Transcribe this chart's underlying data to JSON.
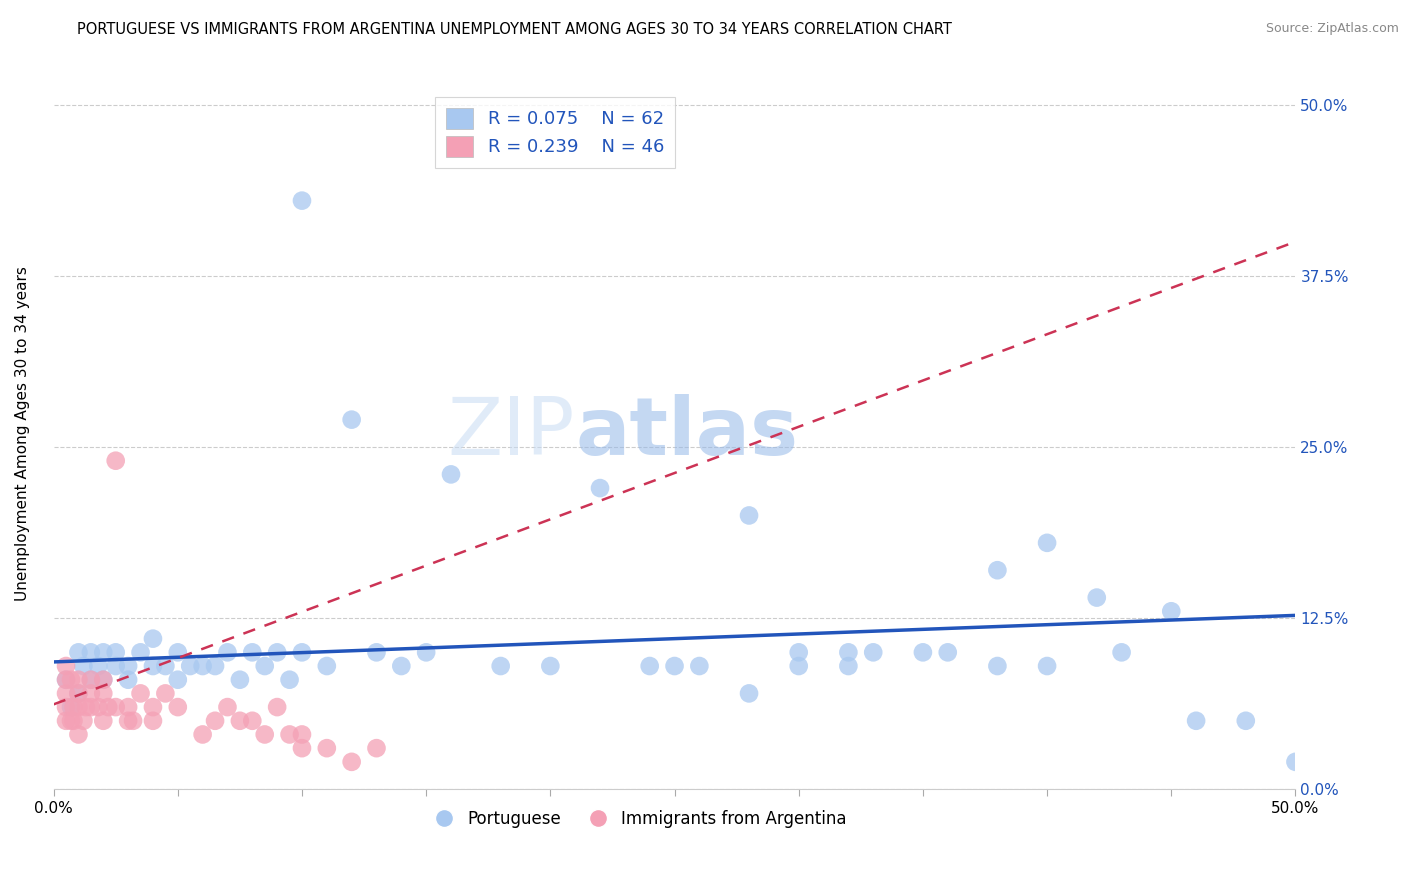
{
  "title": "PORTUGUESE VS IMMIGRANTS FROM ARGENTINA UNEMPLOYMENT AMONG AGES 30 TO 34 YEARS CORRELATION CHART",
  "source": "Source: ZipAtlas.com",
  "ylabel": "Unemployment Among Ages 30 to 34 years",
  "xlim": [
    0.0,
    0.5
  ],
  "ylim": [
    0.0,
    0.52
  ],
  "ytick_labels": [
    "0.0%",
    "12.5%",
    "25.0%",
    "37.5%",
    "50.0%"
  ],
  "ytick_values": [
    0.0,
    0.125,
    0.25,
    0.375,
    0.5
  ],
  "xtick_values": [
    0.0,
    0.05,
    0.1,
    0.15,
    0.2,
    0.25,
    0.3,
    0.35,
    0.4,
    0.45,
    0.5
  ],
  "watermark_part1": "ZIP",
  "watermark_part2": "atlas",
  "blue_color": "#A8C8F0",
  "pink_color": "#F4A0B5",
  "blue_line_color": "#2255BB",
  "pink_line_color": "#CC3355",
  "legend_label_blue": "Portuguese",
  "legend_label_pink": "Immigrants from Argentina",
  "legend_R_blue": "R = 0.075",
  "legend_N_blue": "N = 62",
  "legend_R_pink": "R = 0.239",
  "legend_N_pink": "N = 46",
  "grid_color": "#CCCCCC",
  "blue_scatter_x": [
    0.005,
    0.007,
    0.01,
    0.01,
    0.012,
    0.015,
    0.015,
    0.018,
    0.02,
    0.02,
    0.025,
    0.025,
    0.03,
    0.03,
    0.035,
    0.04,
    0.04,
    0.045,
    0.05,
    0.05,
    0.055,
    0.06,
    0.065,
    0.07,
    0.075,
    0.08,
    0.085,
    0.09,
    0.095,
    0.1,
    0.1,
    0.11,
    0.12,
    0.13,
    0.14,
    0.15,
    0.16,
    0.18,
    0.2,
    0.22,
    0.24,
    0.25,
    0.26,
    0.28,
    0.28,
    0.3,
    0.3,
    0.32,
    0.32,
    0.33,
    0.35,
    0.36,
    0.38,
    0.38,
    0.4,
    0.4,
    0.42,
    0.43,
    0.45,
    0.46,
    0.48,
    0.5
  ],
  "blue_scatter_y": [
    0.08,
    0.06,
    0.07,
    0.1,
    0.09,
    0.1,
    0.08,
    0.09,
    0.08,
    0.1,
    0.09,
    0.1,
    0.08,
    0.09,
    0.1,
    0.09,
    0.11,
    0.09,
    0.08,
    0.1,
    0.09,
    0.09,
    0.09,
    0.1,
    0.08,
    0.1,
    0.09,
    0.1,
    0.08,
    0.1,
    0.43,
    0.09,
    0.27,
    0.1,
    0.09,
    0.1,
    0.23,
    0.09,
    0.09,
    0.22,
    0.09,
    0.09,
    0.09,
    0.2,
    0.07,
    0.1,
    0.09,
    0.09,
    0.1,
    0.1,
    0.1,
    0.1,
    0.16,
    0.09,
    0.09,
    0.18,
    0.14,
    0.1,
    0.13,
    0.05,
    0.05,
    0.02
  ],
  "pink_scatter_x": [
    0.005,
    0.005,
    0.005,
    0.005,
    0.005,
    0.007,
    0.007,
    0.008,
    0.008,
    0.01,
    0.01,
    0.01,
    0.01,
    0.012,
    0.013,
    0.015,
    0.015,
    0.015,
    0.018,
    0.02,
    0.02,
    0.02,
    0.022,
    0.025,
    0.025,
    0.03,
    0.03,
    0.032,
    0.035,
    0.04,
    0.04,
    0.045,
    0.05,
    0.06,
    0.065,
    0.07,
    0.075,
    0.08,
    0.085,
    0.09,
    0.095,
    0.1,
    0.1,
    0.11,
    0.12,
    0.13
  ],
  "pink_scatter_y": [
    0.05,
    0.06,
    0.07,
    0.08,
    0.09,
    0.05,
    0.08,
    0.05,
    0.06,
    0.04,
    0.06,
    0.07,
    0.08,
    0.05,
    0.06,
    0.06,
    0.07,
    0.08,
    0.06,
    0.05,
    0.07,
    0.08,
    0.06,
    0.06,
    0.24,
    0.05,
    0.06,
    0.05,
    0.07,
    0.05,
    0.06,
    0.07,
    0.06,
    0.04,
    0.05,
    0.06,
    0.05,
    0.05,
    0.04,
    0.06,
    0.04,
    0.03,
    0.04,
    0.03,
    0.02,
    0.03
  ]
}
